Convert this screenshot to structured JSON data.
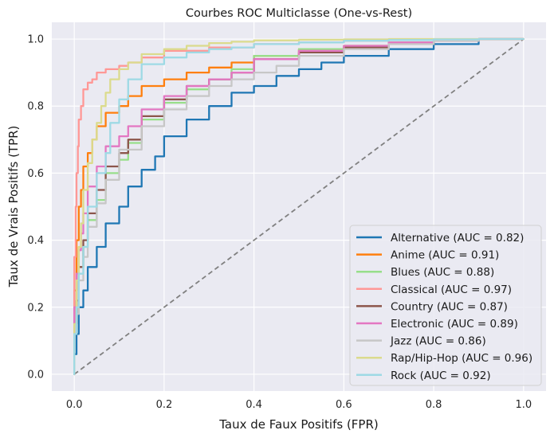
{
  "chart_data": {
    "type": "line",
    "title": "Courbes ROC Multiclasse (One-vs-Rest)",
    "xlabel": "Taux de Faux Positifs (FPR)",
    "ylabel": "Taux de Vrais Positifs (TPR)",
    "xlim": [
      -0.05,
      1.05
    ],
    "ylim": [
      -0.05,
      1.05
    ],
    "xticks": [
      "0.0",
      "0.2",
      "0.4",
      "0.6",
      "0.8",
      "1.0"
    ],
    "yticks": [
      "0.0",
      "0.2",
      "0.4",
      "0.6",
      "0.8",
      "1.0"
    ],
    "grid": true,
    "legend_position": "bottom-right",
    "background": "#eaeaf2",
    "diagonal": {
      "x": [
        0,
        1
      ],
      "y": [
        0,
        1
      ],
      "color": "#808080",
      "style": "dashed"
    },
    "series": [
      {
        "name": "Alternative (AUC = 0.82)",
        "color": "#1f77b4",
        "x": [
          0,
          0.005,
          0.01,
          0.02,
          0.03,
          0.05,
          0.07,
          0.1,
          0.12,
          0.15,
          0.18,
          0.2,
          0.25,
          0.3,
          0.35,
          0.4,
          0.45,
          0.5,
          0.55,
          0.6,
          0.7,
          0.8,
          0.9,
          1.0
        ],
        "y": [
          0,
          0.06,
          0.12,
          0.2,
          0.25,
          0.32,
          0.38,
          0.45,
          0.5,
          0.56,
          0.61,
          0.65,
          0.71,
          0.76,
          0.8,
          0.84,
          0.86,
          0.89,
          0.91,
          0.93,
          0.95,
          0.97,
          0.985,
          1.0
        ]
      },
      {
        "name": "Anime (AUC = 0.91)",
        "color": "#ff7f0e",
        "x": [
          0,
          0.005,
          0.01,
          0.015,
          0.02,
          0.03,
          0.04,
          0.05,
          0.07,
          0.1,
          0.12,
          0.15,
          0.2,
          0.25,
          0.3,
          0.35,
          0.4,
          0.5,
          0.6,
          0.7,
          0.8,
          0.9,
          1.0
        ],
        "y": [
          0,
          0.25,
          0.4,
          0.5,
          0.55,
          0.62,
          0.66,
          0.7,
          0.74,
          0.78,
          0.8,
          0.83,
          0.86,
          0.88,
          0.9,
          0.915,
          0.93,
          0.95,
          0.97,
          0.98,
          0.99,
          0.995,
          1.0
        ]
      },
      {
        "name": "Blues (AUC = 0.88)",
        "color": "#98df8a",
        "x": [
          0,
          0.005,
          0.01,
          0.02,
          0.03,
          0.05,
          0.07,
          0.1,
          0.12,
          0.15,
          0.2,
          0.25,
          0.3,
          0.35,
          0.4,
          0.5,
          0.6,
          0.7,
          0.8,
          0.9,
          1.0
        ],
        "y": [
          0,
          0.15,
          0.22,
          0.32,
          0.38,
          0.46,
          0.52,
          0.6,
          0.64,
          0.69,
          0.76,
          0.81,
          0.85,
          0.88,
          0.91,
          0.95,
          0.97,
          0.98,
          0.99,
          0.995,
          1.0
        ]
      },
      {
        "name": "Classical (AUC = 0.97)",
        "color": "#ff9896",
        "x": [
          0,
          0.003,
          0.005,
          0.008,
          0.01,
          0.015,
          0.02,
          0.03,
          0.04,
          0.05,
          0.07,
          0.1,
          0.12,
          0.15,
          0.2,
          0.3,
          0.4,
          0.5,
          0.6,
          0.7,
          0.8,
          0.9,
          1.0
        ],
        "y": [
          0,
          0.35,
          0.5,
          0.6,
          0.68,
          0.76,
          0.8,
          0.85,
          0.87,
          0.88,
          0.9,
          0.91,
          0.92,
          0.93,
          0.945,
          0.965,
          0.975,
          0.985,
          0.99,
          0.995,
          0.997,
          0.999,
          1.0
        ]
      },
      {
        "name": "Country (AUC = 0.87)",
        "color": "#8c564b",
        "x": [
          0,
          0.005,
          0.01,
          0.02,
          0.03,
          0.05,
          0.07,
          0.1,
          0.12,
          0.15,
          0.2,
          0.25,
          0.3,
          0.35,
          0.4,
          0.5,
          0.6,
          0.7,
          0.8,
          0.9,
          1.0
        ],
        "y": [
          0,
          0.15,
          0.22,
          0.32,
          0.4,
          0.48,
          0.55,
          0.62,
          0.66,
          0.7,
          0.77,
          0.82,
          0.86,
          0.88,
          0.9,
          0.94,
          0.96,
          0.975,
          0.985,
          0.995,
          1.0
        ]
      },
      {
        "name": "Electronic (AUC = 0.89)",
        "color": "#e377c2",
        "x": [
          0,
          0.005,
          0.01,
          0.015,
          0.02,
          0.03,
          0.05,
          0.07,
          0.1,
          0.12,
          0.15,
          0.2,
          0.25,
          0.3,
          0.35,
          0.4,
          0.5,
          0.6,
          0.7,
          0.8,
          0.9,
          1.0
        ],
        "y": [
          0,
          0.2,
          0.3,
          0.37,
          0.42,
          0.48,
          0.56,
          0.62,
          0.68,
          0.71,
          0.74,
          0.79,
          0.83,
          0.86,
          0.88,
          0.9,
          0.94,
          0.965,
          0.98,
          0.99,
          0.995,
          1.0
        ]
      },
      {
        "name": "Jazz (AUC = 0.86)",
        "color": "#c7c7c7",
        "x": [
          0,
          0.005,
          0.01,
          0.02,
          0.03,
          0.05,
          0.07,
          0.1,
          0.15,
          0.2,
          0.25,
          0.3,
          0.35,
          0.4,
          0.45,
          0.5,
          0.6,
          0.7,
          0.8,
          0.9,
          1.0
        ],
        "y": [
          0,
          0.12,
          0.18,
          0.28,
          0.35,
          0.44,
          0.51,
          0.58,
          0.67,
          0.74,
          0.79,
          0.83,
          0.86,
          0.88,
          0.9,
          0.92,
          0.95,
          0.97,
          0.985,
          0.995,
          1.0
        ]
      },
      {
        "name": "Rap/Hip-Hop (AUC = 0.96)",
        "color": "#dbdb8d",
        "x": [
          0,
          0.005,
          0.01,
          0.015,
          0.02,
          0.03,
          0.04,
          0.05,
          0.06,
          0.07,
          0.08,
          0.1,
          0.12,
          0.15,
          0.2,
          0.25,
          0.3,
          0.35,
          0.4,
          0.5,
          0.6,
          0.7,
          0.8,
          0.9,
          1.0
        ],
        "y": [
          0,
          0.15,
          0.28,
          0.38,
          0.45,
          0.55,
          0.63,
          0.7,
          0.75,
          0.8,
          0.84,
          0.88,
          0.91,
          0.93,
          0.955,
          0.97,
          0.98,
          0.988,
          0.992,
          0.996,
          0.998,
          0.999,
          1.0,
          1.0,
          1.0
        ]
      },
      {
        "name": "Rock (AUC = 0.92)",
        "color": "#9edae5",
        "x": [
          0,
          0.005,
          0.01,
          0.02,
          0.03,
          0.05,
          0.07,
          0.08,
          0.1,
          0.12,
          0.15,
          0.2,
          0.25,
          0.3,
          0.35,
          0.4,
          0.5,
          0.6,
          0.7,
          0.8,
          0.9,
          1.0
        ],
        "y": [
          0,
          0.12,
          0.2,
          0.3,
          0.38,
          0.5,
          0.6,
          0.66,
          0.75,
          0.82,
          0.88,
          0.925,
          0.945,
          0.96,
          0.97,
          0.975,
          0.985,
          0.99,
          0.995,
          0.997,
          0.999,
          1.0
        ]
      }
    ]
  }
}
